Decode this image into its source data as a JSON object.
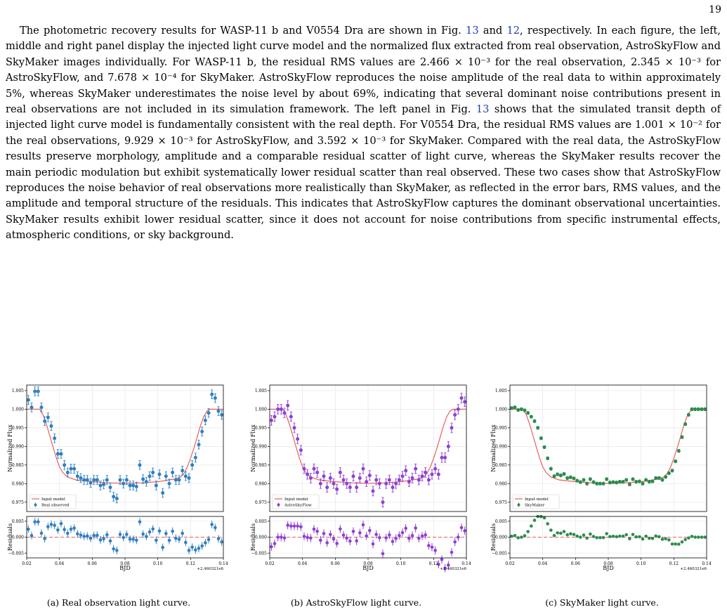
{
  "page": {
    "number": "19"
  },
  "paragraph": {
    "t1": "The photometric recovery results for WASP-11 b and V0554 Dra are shown in Fig. ",
    "ref13a": "13",
    "t2": " and ",
    "ref12": "12",
    "t3": ", respectively. In each figure, the left, middle and right panel display the injected light curve model and the normalized flux extracted from real observation, AstroSkyFlow and SkyMaker images individually. For WASP-11 b, the residual RMS values are 2.466 × 10⁻³ for the real observation, 2.345 × 10⁻³ for AstroSkyFlow, and 7.678 × 10⁻⁴ for SkyMaker. AstroSkyFlow reproduces the noise amplitude of the real data to within approximately 5%, whereas SkyMaker underestimates the noise level by about 69%, indicating that several dominant noise contributions present in real observations are not included in its simulation framework. The left panel in Fig. ",
    "ref13b": "13",
    "t4": " shows that the simulated transit depth of injected light curve model is fundamentally consistent with the real depth. For V0554 Dra, the residual RMS values are 1.001 × 10⁻² for the real observations, 9.929 × 10⁻³ for AstroSkyFlow, and 3.592 × 10⁻³ for SkyMaker. Compared with the real data, the AstroSkyFlow results preserve morphology, amplitude and a comparable residual scatter of light curve, whereas the SkyMaker results recover the main periodic modulation but exhibit systematically lower residual scatter than real observed. These two cases show that AstroSkyFlow reproduces the noise behavior of real observations more realistically than SkyMaker, as reflected in the error bars, RMS values, and the amplitude and temporal structure of the residuals. This indicates that AstroSkyFlow captures the dominant observational uncertainties. SkyMaker results exhibit lower residual scatter, since it does not account for noise contributions from specific instrumental effects, atmospheric conditions, or sky background."
  },
  "figure": {
    "colors": {
      "model": "#e8605c",
      "grid": "#e6e6e6",
      "axis": "#000000"
    },
    "panels": [
      {
        "caption": "(a) Real observation light curve.",
        "legend_model": "Input model",
        "legend_data": "Real observed",
        "color": "#2f7fc1"
      },
      {
        "caption": "(b) AstroSkyFlow light curve.",
        "legend_model": "Input model",
        "legend_data": "AstroSkyFlow",
        "color": "#8e3fd6"
      },
      {
        "caption": "(c) SkyMaker light curve.",
        "legend_model": "Input model",
        "legend_data": "SkyMaker",
        "color": "#2e8b4e"
      }
    ]
  },
  "chart_data": [
    {
      "type": "scatter",
      "ylabel": "Normalized Flux",
      "ylabel_residual": "Residuals",
      "xlabel": "BJD",
      "x_offset_label": "+2.460321e6",
      "xlim": [
        0.02,
        0.14
      ],
      "ylim": [
        0.9725,
        1.0065
      ],
      "ylim_residual": [
        -0.0065,
        0.0065
      ],
      "xticks": [
        "0.02",
        "0.04",
        "0.06",
        "0.08",
        "0.10",
        "0.12",
        "0.14"
      ],
      "yticks": [
        "0.975",
        "0.980",
        "0.985",
        "0.990",
        "0.995",
        "1.000",
        "1.005"
      ],
      "yticks_residual": [
        "−0.005",
        "0.000",
        "0.005"
      ],
      "legend_position": "lower-left",
      "model": {
        "name": "Input model",
        "x": [
          0.02,
          0.028,
          0.03,
          0.032,
          0.034,
          0.036,
          0.038,
          0.04,
          0.042,
          0.045,
          0.05,
          0.06,
          0.07,
          0.08,
          0.09,
          0.1,
          0.11,
          0.114,
          0.116,
          0.118,
          0.12,
          0.122,
          0.124,
          0.126,
          0.128,
          0.13,
          0.132,
          0.135,
          0.14
        ],
        "y": [
          1.0,
          1.0,
          0.9985,
          0.996,
          0.993,
          0.99,
          0.987,
          0.9845,
          0.983,
          0.9818,
          0.981,
          0.9805,
          0.9802,
          0.9801,
          0.9802,
          0.9805,
          0.9812,
          0.9818,
          0.9828,
          0.9845,
          0.9868,
          0.9895,
          0.9925,
          0.9955,
          0.998,
          0.9995,
          1.0,
          1.0,
          1.0
        ]
      },
      "series": [
        {
          "name": "Real observed",
          "error": 0.0012,
          "x": [
            0.021,
            0.023,
            0.025,
            0.027,
            0.029,
            0.031,
            0.033,
            0.035,
            0.037,
            0.039,
            0.041,
            0.043,
            0.045,
            0.047,
            0.049,
            0.051,
            0.053,
            0.055,
            0.057,
            0.059,
            0.061,
            0.063,
            0.065,
            0.067,
            0.069,
            0.071,
            0.073,
            0.075,
            0.077,
            0.079,
            0.081,
            0.083,
            0.085,
            0.087,
            0.089,
            0.091,
            0.093,
            0.095,
            0.097,
            0.099,
            0.101,
            0.103,
            0.105,
            0.107,
            0.109,
            0.111,
            0.113,
            0.115,
            0.117,
            0.119,
            0.121,
            0.123,
            0.125,
            0.127,
            0.129,
            0.131,
            0.133,
            0.135,
            0.137,
            0.139
          ],
          "y": [
            1.0025,
            1.0005,
            1.0048,
            1.0048,
            1.0005,
            0.9968,
            0.9978,
            0.9955,
            0.9922,
            0.988,
            0.988,
            0.985,
            0.983,
            0.984,
            0.984,
            0.982,
            0.9815,
            0.981,
            0.981,
            0.9802,
            0.981,
            0.981,
            0.9795,
            0.9798,
            0.981,
            0.979,
            0.9765,
            0.976,
            0.981,
            0.98,
            0.981,
            0.9795,
            0.9795,
            0.9792,
            0.985,
            0.9812,
            0.9805,
            0.982,
            0.983,
            0.9795,
            0.9825,
            0.9775,
            0.982,
            0.98,
            0.983,
            0.981,
            0.981,
            0.9835,
            0.982,
            0.9815,
            0.985,
            0.987,
            0.9905,
            0.994,
            0.997,
            0.999,
            1.004,
            1.003,
            0.9995,
            0.9985
          ]
        },
        {
          "name": "AstroSkyFlow",
          "error": 0.0013,
          "x": [
            0.021,
            0.023,
            0.025,
            0.027,
            0.029,
            0.031,
            0.033,
            0.035,
            0.037,
            0.039,
            0.041,
            0.043,
            0.045,
            0.047,
            0.049,
            0.051,
            0.053,
            0.055,
            0.057,
            0.059,
            0.061,
            0.063,
            0.065,
            0.067,
            0.069,
            0.071,
            0.073,
            0.075,
            0.077,
            0.079,
            0.081,
            0.083,
            0.085,
            0.087,
            0.089,
            0.091,
            0.093,
            0.095,
            0.097,
            0.099,
            0.101,
            0.103,
            0.105,
            0.107,
            0.109,
            0.111,
            0.113,
            0.115,
            0.117,
            0.119,
            0.121,
            0.123,
            0.125,
            0.127,
            0.129,
            0.131,
            0.133,
            0.135,
            0.137,
            0.139
          ],
          "y": [
            0.997,
            0.998,
            1.0,
            1.0,
            0.999,
            1.001,
            0.998,
            0.995,
            0.992,
            0.989,
            0.984,
            0.9825,
            0.9815,
            0.984,
            0.983,
            0.98,
            0.982,
            0.979,
            0.9815,
            0.98,
            0.9785,
            0.983,
            0.981,
            0.98,
            0.979,
            0.982,
            0.979,
            0.9815,
            0.984,
            0.9805,
            0.9822,
            0.978,
            0.981,
            0.98,
            0.975,
            0.98,
            0.981,
            0.979,
            0.98,
            0.981,
            0.982,
            0.9835,
            0.9805,
            0.9815,
            0.984,
            0.981,
            0.982,
            0.983,
            0.981,
            0.9825,
            0.984,
            0.9825,
            0.987,
            0.987,
            0.99,
            0.995,
            0.9985,
            1.0,
            1.003,
            1.002
          ]
        },
        {
          "name": "SkyMaker",
          "error": 0.0004,
          "x": [
            0.021,
            0.023,
            0.025,
            0.027,
            0.029,
            0.031,
            0.033,
            0.035,
            0.037,
            0.039,
            0.041,
            0.043,
            0.045,
            0.047,
            0.049,
            0.051,
            0.053,
            0.055,
            0.057,
            0.059,
            0.061,
            0.063,
            0.065,
            0.067,
            0.069,
            0.071,
            0.073,
            0.075,
            0.077,
            0.079,
            0.081,
            0.083,
            0.085,
            0.087,
            0.089,
            0.091,
            0.093,
            0.095,
            0.097,
            0.099,
            0.101,
            0.103,
            0.105,
            0.107,
            0.109,
            0.111,
            0.113,
            0.115,
            0.117,
            0.119,
            0.121,
            0.123,
            0.125,
            0.127,
            0.129,
            0.131,
            0.133,
            0.135,
            0.137,
            0.139
          ],
          "y": [
            1.0003,
            1.0005,
            0.9998,
            1.0,
            0.9997,
            0.999,
            0.998,
            0.9968,
            0.995,
            0.9922,
            0.9898,
            0.9868,
            0.984,
            0.982,
            0.9825,
            0.9822,
            0.9826,
            0.9815,
            0.9817,
            0.9814,
            0.9808,
            0.9804,
            0.981,
            0.98,
            0.9812,
            0.9804,
            0.98,
            0.98,
            0.98,
            0.9812,
            0.9803,
            0.9804,
            0.9803,
            0.9805,
            0.9805,
            0.981,
            0.9798,
            0.9812,
            0.9805,
            0.9806,
            0.98,
            0.981,
            0.9805,
            0.9806,
            0.9815,
            0.9815,
            0.981,
            0.9818,
            0.9828,
            0.9835,
            0.986,
            0.9888,
            0.9925,
            0.996,
            0.9985,
            1.0,
            1.0,
            1.0,
            1.0,
            1.0
          ]
        }
      ]
    }
  ]
}
